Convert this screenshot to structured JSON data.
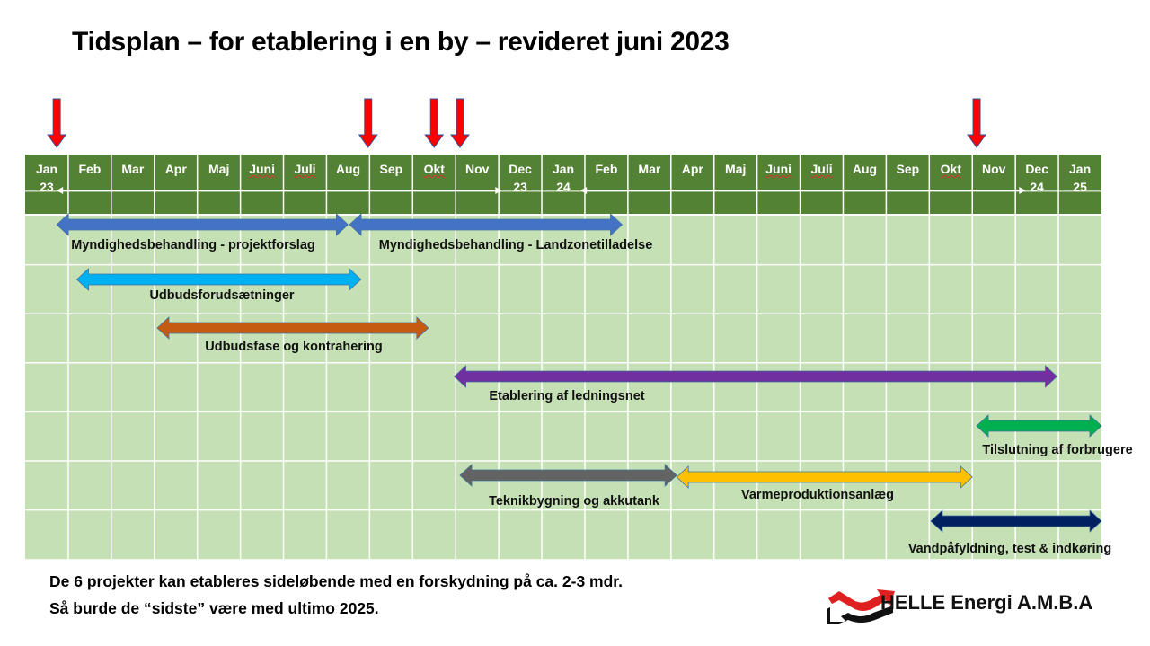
{
  "title": "Tidsplan – for etablering i en by – revideret juni 2023",
  "months": [
    {
      "label": "Jan",
      "year": "23"
    },
    {
      "label": "Feb"
    },
    {
      "label": "Mar"
    },
    {
      "label": "Apr"
    },
    {
      "label": "Maj"
    },
    {
      "label": "Juni",
      "spell": true
    },
    {
      "label": "Juli",
      "spell": true
    },
    {
      "label": "Aug"
    },
    {
      "label": "Sep"
    },
    {
      "label": "Okt",
      "spell": true
    },
    {
      "label": "Nov"
    },
    {
      "label": "Dec",
      "year": "23"
    },
    {
      "label": "Jan",
      "year": "24"
    },
    {
      "label": "Feb"
    },
    {
      "label": "Mar"
    },
    {
      "label": "Apr"
    },
    {
      "label": "Maj"
    },
    {
      "label": "Juni",
      "spell": true
    },
    {
      "label": "Juli",
      "spell": true
    },
    {
      "label": "Aug"
    },
    {
      "label": "Sep"
    },
    {
      "label": "Okt",
      "spell": true
    },
    {
      "label": "Nov"
    },
    {
      "label": "Dec",
      "year": "24"
    },
    {
      "label": "Jan",
      "year": "25"
    }
  ],
  "year_spans": [
    {
      "start": "2023-01-23",
      "end": "2023-12-03"
    },
    {
      "start": "2024-01-28",
      "end": "2024-12-08"
    }
  ],
  "milestones": [
    "2023-01-23",
    "2023-08-30",
    "2023-10-16",
    "2023-11-04",
    "2024-11-04"
  ],
  "tasks": [
    {
      "label": "Myndighedsbehandling - projektforslag",
      "start": "2023-01-23",
      "end": "2023-08-16",
      "row": 0,
      "color": "#4472C4"
    },
    {
      "label": "Myndighedsbehandling - Landzonetilladelse",
      "start": "2023-08-17",
      "end": "2024-02-27",
      "row": 0,
      "color": "#4472C4"
    },
    {
      "label": "Udbudsforudsætninger",
      "start": "2023-02-07",
      "end": "2023-08-25",
      "row": 1,
      "color": "#00B0F0"
    },
    {
      "label": "Udbudsfase og kontrahering",
      "start": "2023-04-03",
      "end": "2023-10-12",
      "row": 2,
      "color": "#C55A11"
    },
    {
      "label": "Etablering af ledningsnet",
      "start": "2023-10-30",
      "end": "2024-12-30",
      "row": 3,
      "color": "#7030A0"
    },
    {
      "label": "Tilslutning af forbrugere",
      "start": "2024-11-04",
      "end": "2025-01-31",
      "row": 4,
      "color": "#00B050"
    },
    {
      "label": "Teknikbygning og akkutank",
      "start": "2023-11-04",
      "end": "2024-04-05",
      "row": 5,
      "color": "#636363"
    },
    {
      "label": "Varmeproduktionsanlæg",
      "start": "2024-04-05",
      "end": "2024-11-01",
      "row": 5,
      "color": "#FFC000"
    },
    {
      "label": "Vandpåfyldning, test & indkøring",
      "start": "2024-10-02",
      "end": "2025-01-31",
      "row": 6,
      "color": "#002060"
    }
  ],
  "colors": {
    "header": "#548235",
    "grid": "#C5E0B4",
    "milestone": "#FF0000"
  },
  "footer": {
    "line1": "De 6 projekter kan etableres sideløbende med en forskydning på ca. 2-3 mdr.",
    "line2": "Så burde de “sidste” være med ultimo 2025."
  },
  "brand": "HELLE Energi A.M.B.A"
}
